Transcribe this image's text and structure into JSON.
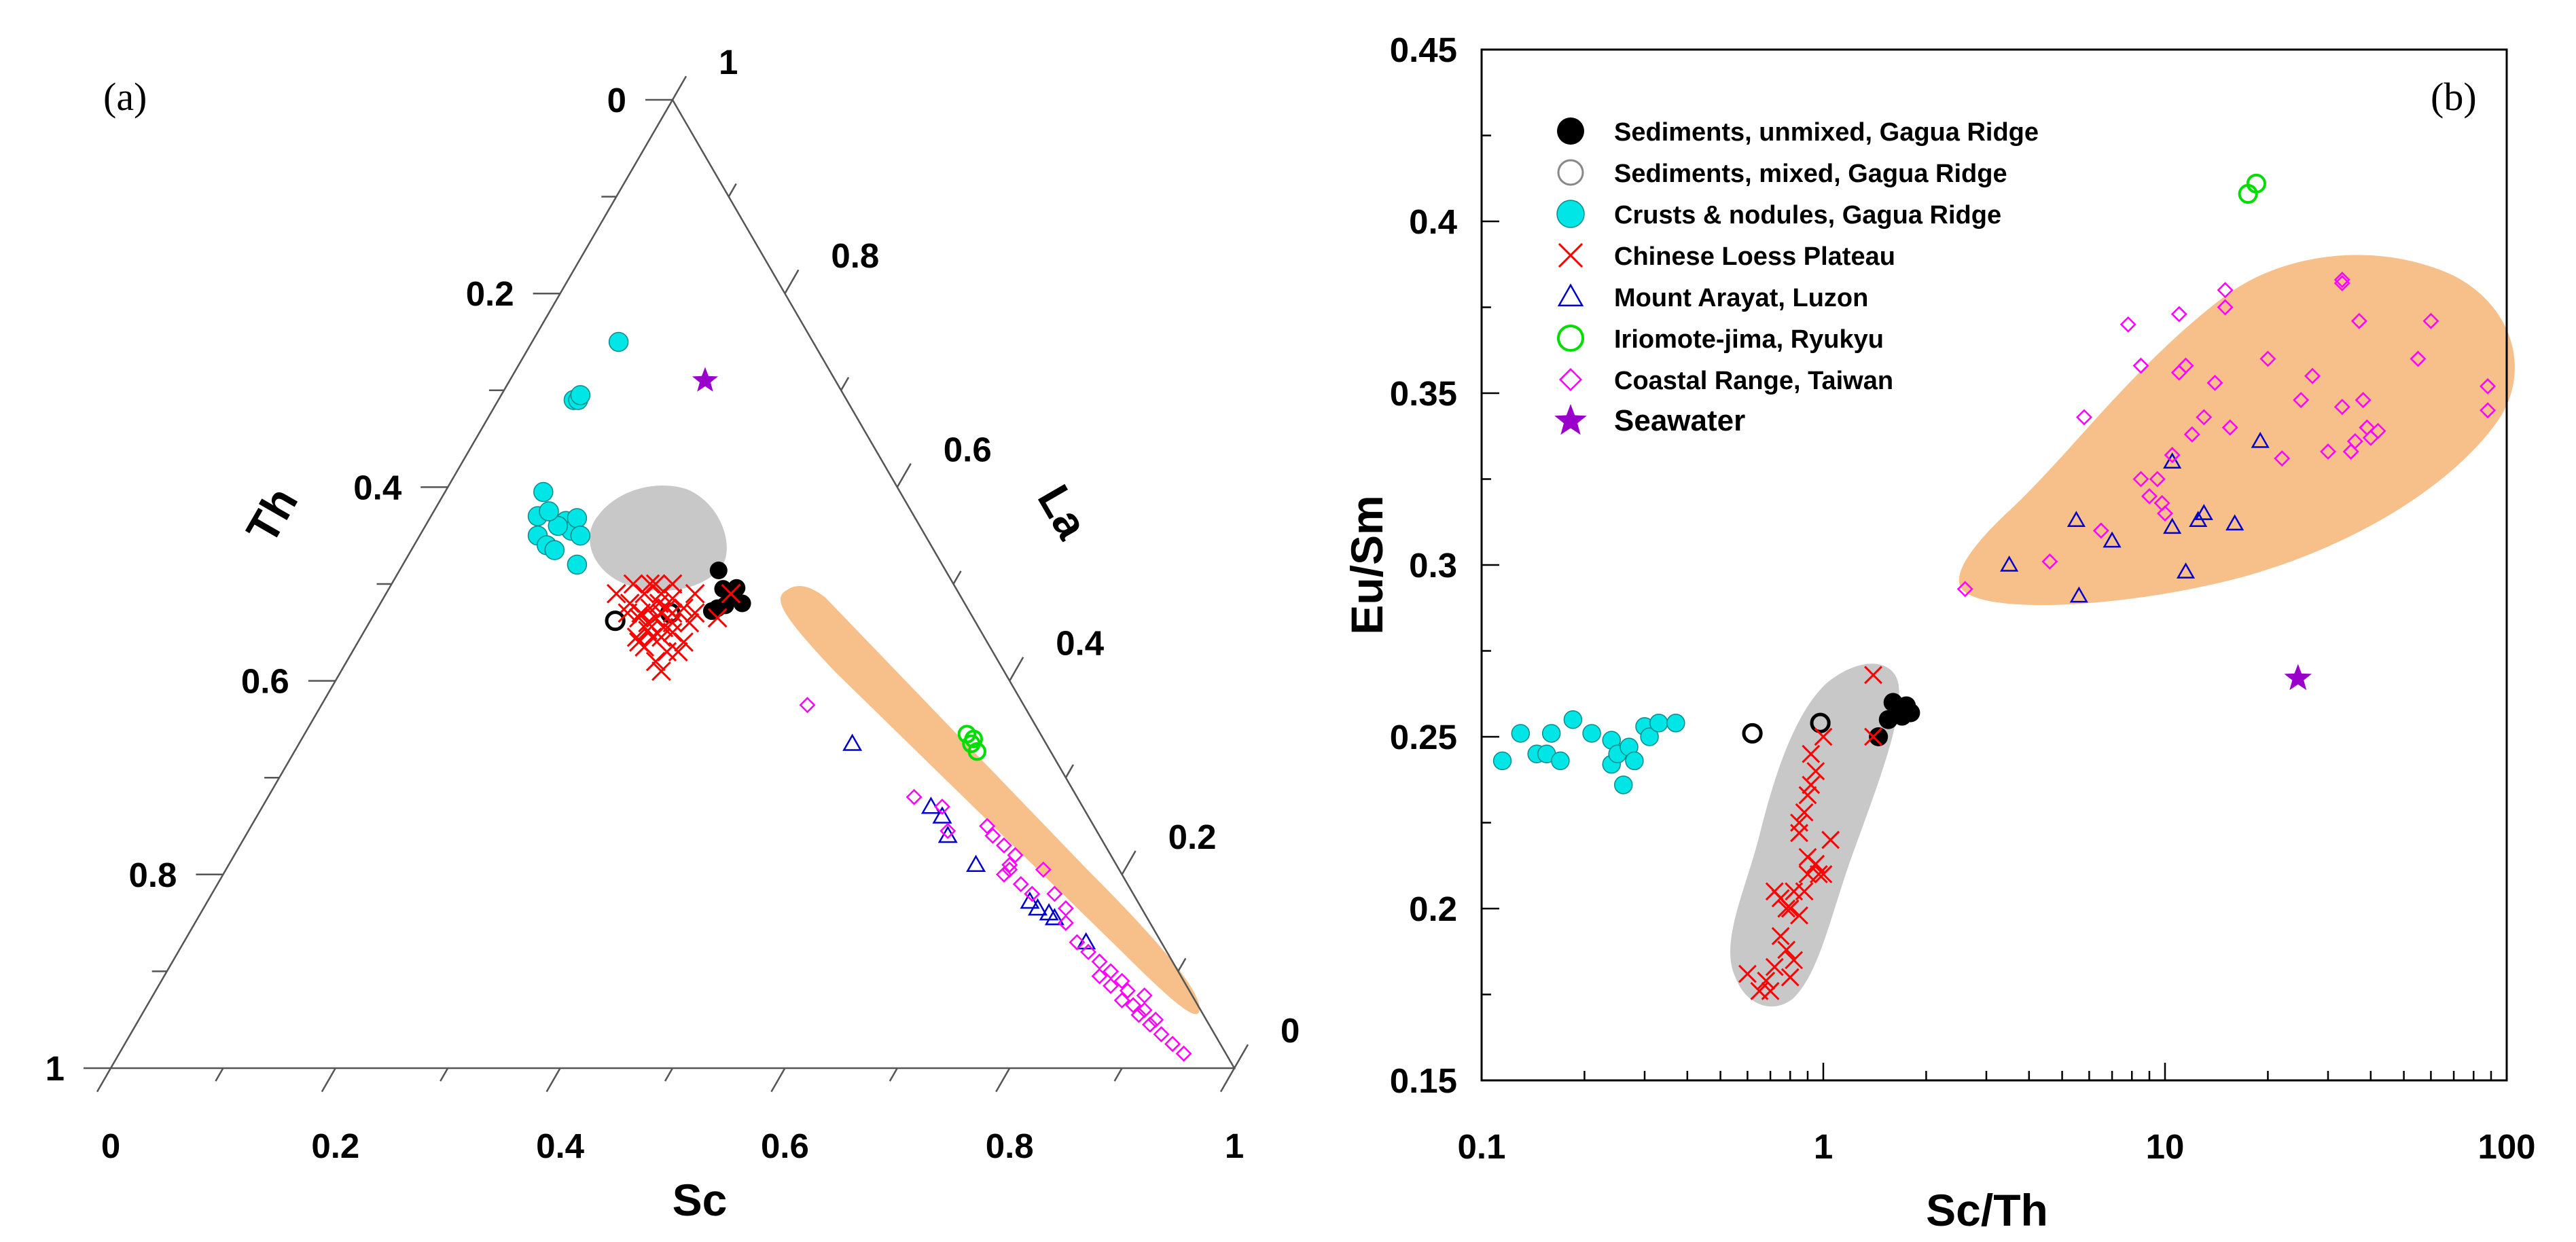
{
  "figure": {
    "panel_a_label": "(a)",
    "panel_b_label": "(b)"
  },
  "colors": {
    "sed_unmixed": "#000000",
    "sed_mixed": "#000000",
    "crusts": "#00e5e5",
    "loess": "#ff0000",
    "arayat": "#0000cc",
    "iriomote": "#00dd00",
    "coastal": "#ff00ff",
    "seawater": "#9900cc",
    "orange_field": "#f7bf8a",
    "grey_field": "#c8c8c8"
  },
  "legend": [
    {
      "key": "sed_unmixed",
      "label": "Sediments, unmixed, Gagua Ridge",
      "marker": "filled-circle"
    },
    {
      "key": "sed_mixed",
      "label": "Sediments, mixed, Gagua Ridge",
      "marker": "open-circle-grey"
    },
    {
      "key": "crusts",
      "label": "Crusts & nodules, Gagua Ridge",
      "marker": "filled-circle-cyan"
    },
    {
      "key": "loess",
      "label": "Chinese Loess Plateau",
      "marker": "cross"
    },
    {
      "key": "arayat",
      "label": "Mount Arayat, Luzon",
      "marker": "triangle"
    },
    {
      "key": "iriomote",
      "label": "Iriomote-jima, Ryukyu",
      "marker": "open-circle"
    },
    {
      "key": "coastal",
      "label": "Coastal Range, Taiwan",
      "marker": "diamond"
    },
    {
      "key": "seawater",
      "label": "Seawater",
      "marker": "star"
    }
  ],
  "chart_data": [
    {
      "type": "scatter",
      "panel": "(a)",
      "plot": "ternary",
      "axes": {
        "bottom": "Sc",
        "left": "Th",
        "right": "La"
      },
      "ticks": {
        "bottom": [
          "0",
          "0.2",
          "0.4",
          "0.6",
          "0.8",
          "1"
        ],
        "left": [
          "1",
          "0.8",
          "0.6",
          "0.4",
          "0.2",
          "0"
        ],
        "right": [
          "0",
          "0.2",
          "0.4",
          "0.6",
          "0.8",
          "1"
        ]
      },
      "coordinate_note": "x = Sc + Th/2, y = Th (fractions)",
      "series": [
        {
          "key": "crusts",
          "points": [
            [
              0.452,
              0.75
            ],
            [
              0.412,
              0.69
            ],
            [
              0.416,
              0.69
            ],
            [
              0.418,
              0.695
            ],
            [
              0.385,
              0.595
            ],
            [
              0.38,
              0.57
            ],
            [
              0.38,
              0.55
            ],
            [
              0.388,
              0.54
            ],
            [
              0.395,
              0.535
            ],
            [
              0.405,
              0.565
            ],
            [
              0.41,
              0.555
            ],
            [
              0.415,
              0.568
            ],
            [
              0.418,
              0.55
            ],
            [
              0.415,
              0.52
            ],
            [
              0.398,
              0.56
            ],
            [
              0.39,
              0.575
            ]
          ]
        },
        {
          "key": "seawater",
          "points": [
            [
              0.529,
              0.71
            ]
          ]
        },
        {
          "key": "sed_unmixed",
          "points": [
            [
              0.541,
              0.514
            ],
            [
              0.545,
              0.495
            ],
            [
              0.552,
              0.488
            ],
            [
              0.557,
              0.496
            ],
            [
              0.562,
              0.48
            ],
            [
              0.547,
              0.478
            ],
            [
              0.54,
              0.475
            ],
            [
              0.535,
              0.472
            ]
          ]
        },
        {
          "key": "sed_mixed",
          "points": [
            [
              0.449,
              0.462
            ],
            [
              0.498,
              0.47
            ]
          ]
        },
        {
          "key": "loess",
          "points": [
            [
              0.45,
              0.49
            ],
            [
              0.465,
              0.5
            ],
            [
              0.475,
              0.49
            ],
            [
              0.48,
              0.475
            ],
            [
              0.485,
              0.465
            ],
            [
              0.49,
              0.47
            ],
            [
              0.47,
              0.465
            ],
            [
              0.46,
              0.47
            ],
            [
              0.468,
              0.445
            ],
            [
              0.478,
              0.46
            ],
            [
              0.492,
              0.455
            ],
            [
              0.475,
              0.435
            ],
            [
              0.495,
              0.43
            ],
            [
              0.5,
              0.485
            ],
            [
              0.51,
              0.44
            ],
            [
              0.52,
              0.47
            ],
            [
              0.5,
              0.46
            ],
            [
              0.488,
              0.48
            ],
            [
              0.472,
              0.47
            ],
            [
              0.49,
              0.445
            ],
            [
              0.485,
              0.42
            ],
            [
              0.49,
              0.41
            ],
            [
              0.505,
              0.43
            ],
            [
              0.48,
              0.5
            ],
            [
              0.5,
              0.5
            ],
            [
              0.495,
              0.475
            ],
            [
              0.462,
              0.48
            ],
            [
              0.482,
              0.445
            ],
            [
              0.52,
              0.49
            ],
            [
              0.51,
              0.475
            ],
            [
              0.5,
              0.45
            ],
            [
              0.478,
              0.452
            ],
            [
              0.49,
              0.49
            ],
            [
              0.485,
              0.5
            ],
            [
              0.47,
              0.44
            ],
            [
              0.5,
              0.47
            ],
            [
              0.54,
              0.465
            ],
            [
              0.552,
              0.49
            ],
            [
              0.515,
              0.46
            ]
          ]
        },
        {
          "key": "iriomote",
          "points": [
            [
              0.762,
              0.345
            ],
            [
              0.766,
              0.335
            ],
            [
              0.771,
              0.327
            ],
            [
              0.768,
              0.34
            ]
          ]
        },
        {
          "key": "arayat",
          "points": [
            [
              0.66,
              0.335
            ],
            [
              0.73,
              0.27
            ],
            [
              0.74,
              0.26
            ],
            [
              0.745,
              0.24
            ],
            [
              0.77,
              0.21
            ],
            [
              0.818,
              0.172
            ],
            [
              0.825,
              0.165
            ],
            [
              0.835,
              0.16
            ],
            [
              0.84,
              0.155
            ],
            [
              0.868,
              0.13
            ]
          ]
        },
        {
          "key": "coastal",
          "points": [
            [
              0.62,
              0.375
            ],
            [
              0.715,
              0.28
            ],
            [
              0.74,
              0.27
            ],
            [
              0.745,
              0.245
            ],
            [
              0.78,
              0.25
            ],
            [
              0.785,
              0.24
            ],
            [
              0.795,
              0.23
            ],
            [
              0.805,
              0.22
            ],
            [
              0.8,
              0.205
            ],
            [
              0.795,
              0.2
            ],
            [
              0.8,
              0.21
            ],
            [
              0.83,
              0.205
            ],
            [
              0.82,
              0.18
            ],
            [
              0.84,
              0.18
            ],
            [
              0.85,
              0.165
            ],
            [
              0.86,
              0.13
            ],
            [
              0.87,
              0.12
            ],
            [
              0.88,
              0.11
            ],
            [
              0.89,
              0.1
            ],
            [
              0.9,
              0.09
            ],
            [
              0.905,
              0.08
            ],
            [
              0.91,
              0.065
            ],
            [
              0.915,
              0.055
            ],
            [
              0.92,
              0.06
            ],
            [
              0.925,
              0.045
            ],
            [
              0.935,
              0.035
            ],
            [
              0.945,
              0.025
            ],
            [
              0.955,
              0.015
            ],
            [
              0.81,
              0.19
            ],
            [
              0.89,
              0.085
            ],
            [
              0.9,
              0.07
            ],
            [
              0.92,
              0.075
            ],
            [
              0.93,
              0.05
            ],
            [
              0.85,
              0.15
            ],
            [
              0.88,
              0.095
            ]
          ]
        }
      ]
    },
    {
      "type": "scatter",
      "panel": "(b)",
      "xlabel": "Sc/Th",
      "ylabel": "Eu/Sm",
      "xscale": "log",
      "xlim": [
        0.1,
        100
      ],
      "ylim": [
        0.15,
        0.45
      ],
      "xticks": [
        "0.1",
        "1",
        "10",
        "100"
      ],
      "yticks": [
        "0.15",
        "0.2",
        "0.25",
        "0.3",
        "0.35",
        "0.4",
        "0.45"
      ],
      "legend_position": "top-left",
      "series": [
        {
          "key": "crusts",
          "points": [
            [
              0.115,
              0.243
            ],
            [
              0.13,
              0.251
            ],
            [
              0.145,
              0.245
            ],
            [
              0.155,
              0.245
            ],
            [
              0.16,
              0.251
            ],
            [
              0.17,
              0.243
            ],
            [
              0.185,
              0.255
            ],
            [
              0.21,
              0.251
            ],
            [
              0.24,
              0.249
            ],
            [
              0.24,
              0.242
            ],
            [
              0.25,
              0.245
            ],
            [
              0.26,
              0.236
            ],
            [
              0.27,
              0.247
            ],
            [
              0.28,
              0.243
            ],
            [
              0.3,
              0.253
            ],
            [
              0.31,
              0.25
            ],
            [
              0.33,
              0.254
            ],
            [
              0.37,
              0.254
            ]
          ]
        },
        {
          "key": "sed_mixed",
          "points": [
            [
              0.62,
              0.251
            ],
            [
              0.98,
              0.254
            ]
          ]
        },
        {
          "key": "sed_unmixed",
          "points": [
            [
              1.45,
              0.25
            ],
            [
              1.55,
              0.255
            ],
            [
              1.6,
              0.26
            ],
            [
              1.65,
              0.258
            ],
            [
              1.7,
              0.256
            ],
            [
              1.75,
              0.259
            ],
            [
              1.8,
              0.257
            ]
          ]
        },
        {
          "key": "loess",
          "points": [
            [
              0.6,
              0.181
            ],
            [
              0.65,
              0.176
            ],
            [
              0.68,
              0.179
            ],
            [
              0.7,
              0.176
            ],
            [
              0.72,
              0.183
            ],
            [
              0.75,
              0.192
            ],
            [
              0.78,
              0.188
            ],
            [
              0.8,
              0.18
            ],
            [
              0.82,
              0.185
            ],
            [
              0.75,
              0.203
            ],
            [
              0.8,
              0.2
            ],
            [
              0.82,
              0.205
            ],
            [
              0.85,
              0.198
            ],
            [
              0.88,
              0.205
            ],
            [
              0.9,
              0.21
            ],
            [
              0.95,
              0.213
            ],
            [
              1.0,
              0.21
            ],
            [
              1.05,
              0.22
            ],
            [
              0.85,
              0.222
            ],
            [
              0.88,
              0.228
            ],
            [
              0.9,
              0.233
            ],
            [
              0.92,
              0.236
            ],
            [
              0.95,
              0.24
            ],
            [
              0.9,
              0.215
            ],
            [
              0.85,
              0.225
            ],
            [
              0.92,
              0.245
            ],
            [
              1.0,
              0.25
            ],
            [
              0.97,
              0.21
            ],
            [
              0.78,
              0.2
            ],
            [
              0.72,
              0.205
            ],
            [
              1.4,
              0.268
            ],
            [
              1.4,
              0.25
            ]
          ]
        },
        {
          "key": "iriomote",
          "points": [
            [
              17.5,
              0.408
            ],
            [
              18.5,
              0.411
            ]
          ]
        },
        {
          "key": "arayat",
          "points": [
            [
              3.5,
              0.3
            ],
            [
              5.5,
              0.313
            ],
            [
              5.6,
              0.291
            ],
            [
              7.0,
              0.307
            ],
            [
              10.5,
              0.33
            ],
            [
              10.5,
              0.311
            ],
            [
              11.5,
              0.298
            ],
            [
              12.5,
              0.313
            ],
            [
              13.0,
              0.315
            ],
            [
              16.0,
              0.312
            ],
            [
              19.0,
              0.336
            ]
          ]
        },
        {
          "key": "coastal",
          "points": [
            [
              2.6,
              0.293
            ],
            [
              4.6,
              0.301
            ],
            [
              5.8,
              0.343
            ],
            [
              6.5,
              0.31
            ],
            [
              7.8,
              0.37
            ],
            [
              8.5,
              0.358
            ],
            [
              8.5,
              0.325
            ],
            [
              9.0,
              0.32
            ],
            [
              9.5,
              0.325
            ],
            [
              9.8,
              0.318
            ],
            [
              10.0,
              0.315
            ],
            [
              10.5,
              0.332
            ],
            [
              11.0,
              0.356
            ],
            [
              11.0,
              0.373
            ],
            [
              11.5,
              0.358
            ],
            [
              12.0,
              0.338
            ],
            [
              13.0,
              0.343
            ],
            [
              14.0,
              0.353
            ],
            [
              15.0,
              0.375
            ],
            [
              15.0,
              0.38
            ],
            [
              15.5,
              0.34
            ],
            [
              20.0,
              0.36
            ],
            [
              22.0,
              0.331
            ],
            [
              25.0,
              0.348
            ],
            [
              27.0,
              0.355
            ],
            [
              33.0,
              0.382
            ],
            [
              33.0,
              0.383
            ],
            [
              33.0,
              0.346
            ],
            [
              35.0,
              0.333
            ],
            [
              36.0,
              0.336
            ],
            [
              37.0,
              0.371
            ],
            [
              38.0,
              0.348
            ],
            [
              39.0,
              0.34
            ],
            [
              40.0,
              0.337
            ],
            [
              55.0,
              0.36
            ],
            [
              60.0,
              0.371
            ],
            [
              88.0,
              0.352
            ],
            [
              88.0,
              0.345
            ],
            [
              42.0,
              0.339
            ],
            [
              30.0,
              0.333
            ]
          ]
        },
        {
          "key": "seawater",
          "points": [
            [
              24.5,
              0.267
            ]
          ]
        }
      ]
    }
  ]
}
